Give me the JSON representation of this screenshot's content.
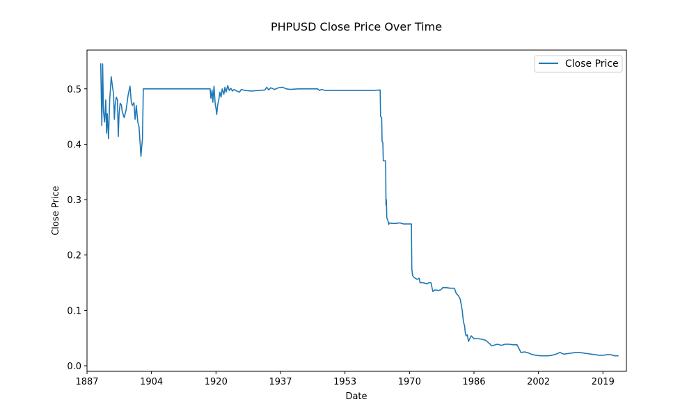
{
  "chart_data": {
    "type": "line",
    "title": "PHPUSD Close Price Over Time",
    "xlabel": "Date",
    "ylabel": "Close Price",
    "grid": false,
    "legend_position": "upper right",
    "series_color": "#1f77b4",
    "xlim": [
      1887,
      2025
    ],
    "ylim": [
      -0.01,
      0.57
    ],
    "x_ticks": [
      {
        "value": 1887,
        "label": "1887"
      },
      {
        "value": 1903.5,
        "label": "1904"
      },
      {
        "value": 1920,
        "label": "1920"
      },
      {
        "value": 1936.5,
        "label": "1937"
      },
      {
        "value": 1953,
        "label": "1953"
      },
      {
        "value": 1969.5,
        "label": "1970"
      },
      {
        "value": 1986,
        "label": "1986"
      },
      {
        "value": 2002.5,
        "label": "2002"
      },
      {
        "value": 2019,
        "label": "2019"
      }
    ],
    "y_ticks": [
      {
        "value": 0.0,
        "label": "0.0"
      },
      {
        "value": 0.1,
        "label": "0.1"
      },
      {
        "value": 0.2,
        "label": "0.2"
      },
      {
        "value": 0.3,
        "label": "0.3"
      },
      {
        "value": 0.4,
        "label": "0.4"
      },
      {
        "value": 0.5,
        "label": "0.5"
      }
    ],
    "series": [
      {
        "name": "Close Price",
        "points": [
          [
            1890.5,
            0.546
          ],
          [
            1890.8,
            0.434
          ],
          [
            1891.0,
            0.545
          ],
          [
            1891.2,
            0.46
          ],
          [
            1891.5,
            0.44
          ],
          [
            1891.8,
            0.48
          ],
          [
            1892.0,
            0.42
          ],
          [
            1892.2,
            0.455
          ],
          [
            1892.5,
            0.41
          ],
          [
            1892.8,
            0.48
          ],
          [
            1893.0,
            0.5
          ],
          [
            1893.2,
            0.522
          ],
          [
            1893.5,
            0.505
          ],
          [
            1893.8,
            0.49
          ],
          [
            1894.0,
            0.445
          ],
          [
            1894.2,
            0.47
          ],
          [
            1894.5,
            0.485
          ],
          [
            1894.8,
            0.48
          ],
          [
            1895.0,
            0.414
          ],
          [
            1895.2,
            0.455
          ],
          [
            1895.5,
            0.474
          ],
          [
            1895.8,
            0.471
          ],
          [
            1896.0,
            0.46
          ],
          [
            1896.5,
            0.448
          ],
          [
            1897.0,
            0.462
          ],
          [
            1897.5,
            0.488
          ],
          [
            1898.0,
            0.505
          ],
          [
            1898.3,
            0.478
          ],
          [
            1898.6,
            0.47
          ],
          [
            1899.0,
            0.475
          ],
          [
            1899.3,
            0.445
          ],
          [
            1899.6,
            0.47
          ],
          [
            1900.0,
            0.44
          ],
          [
            1900.3,
            0.432
          ],
          [
            1900.6,
            0.4
          ],
          [
            1900.8,
            0.378
          ],
          [
            1901.0,
            0.395
          ],
          [
            1901.2,
            0.41
          ],
          [
            1901.4,
            0.5
          ],
          [
            1904.0,
            0.5
          ],
          [
            1912.0,
            0.5
          ],
          [
            1918.5,
            0.5
          ],
          [
            1918.7,
            0.483
          ],
          [
            1919.0,
            0.498
          ],
          [
            1919.2,
            0.476
          ],
          [
            1919.5,
            0.505
          ],
          [
            1919.8,
            0.472
          ],
          [
            1920.0,
            0.465
          ],
          [
            1920.2,
            0.454
          ],
          [
            1920.4,
            0.47
          ],
          [
            1920.7,
            0.48
          ],
          [
            1921.0,
            0.494
          ],
          [
            1921.3,
            0.485
          ],
          [
            1921.6,
            0.5
          ],
          [
            1922.0,
            0.49
          ],
          [
            1922.3,
            0.503
          ],
          [
            1922.6,
            0.494
          ],
          [
            1923.0,
            0.506
          ],
          [
            1923.4,
            0.497
          ],
          [
            1923.8,
            0.501
          ],
          [
            1924.2,
            0.496
          ],
          [
            1924.6,
            0.499
          ],
          [
            1925.0,
            0.497
          ],
          [
            1926.0,
            0.494
          ],
          [
            1926.5,
            0.499
          ],
          [
            1927.5,
            0.497
          ],
          [
            1929.0,
            0.496
          ],
          [
            1931.0,
            0.497
          ],
          [
            1932.5,
            0.498
          ],
          [
            1933.0,
            0.503
          ],
          [
            1933.5,
            0.498
          ],
          [
            1934.0,
            0.502
          ],
          [
            1935.0,
            0.499
          ],
          [
            1936.0,
            0.502
          ],
          [
            1937.0,
            0.503
          ],
          [
            1938.0,
            0.5
          ],
          [
            1939.0,
            0.499
          ],
          [
            1941.0,
            0.5
          ],
          [
            1943.0,
            0.5
          ],
          [
            1946.0,
            0.5
          ],
          [
            1946.5,
            0.497
          ],
          [
            1947.0,
            0.499
          ],
          [
            1948.0,
            0.497
          ],
          [
            1950.0,
            0.497
          ],
          [
            1955.0,
            0.497
          ],
          [
            1960.0,
            0.497
          ],
          [
            1962.0,
            0.498
          ],
          [
            1962.1,
            0.45
          ],
          [
            1962.4,
            0.448
          ],
          [
            1962.5,
            0.405
          ],
          [
            1962.7,
            0.403
          ],
          [
            1962.8,
            0.37
          ],
          [
            1963.4,
            0.37
          ],
          [
            1963.5,
            0.29
          ],
          [
            1963.6,
            0.3
          ],
          [
            1963.7,
            0.268
          ],
          [
            1963.8,
            0.265
          ],
          [
            1964.0,
            0.262
          ],
          [
            1964.2,
            0.255
          ],
          [
            1964.3,
            0.258
          ],
          [
            1965.0,
            0.257
          ],
          [
            1966.0,
            0.257
          ],
          [
            1967.0,
            0.258
          ],
          [
            1968.0,
            0.256
          ],
          [
            1970.0,
            0.256
          ],
          [
            1970.1,
            0.175
          ],
          [
            1970.3,
            0.163
          ],
          [
            1970.6,
            0.16
          ],
          [
            1971.0,
            0.158
          ],
          [
            1971.5,
            0.156
          ],
          [
            1972.0,
            0.158
          ],
          [
            1972.2,
            0.15
          ],
          [
            1973.0,
            0.15
          ],
          [
            1974.0,
            0.148
          ],
          [
            1974.5,
            0.15
          ],
          [
            1975.0,
            0.15
          ],
          [
            1975.3,
            0.14
          ],
          [
            1975.5,
            0.134
          ],
          [
            1976.0,
            0.137
          ],
          [
            1977.0,
            0.136
          ],
          [
            1977.5,
            0.137
          ],
          [
            1978.0,
            0.141
          ],
          [
            1979.0,
            0.141
          ],
          [
            1980.0,
            0.14
          ],
          [
            1981.0,
            0.14
          ],
          [
            1981.5,
            0.13
          ],
          [
            1982.0,
            0.127
          ],
          [
            1982.5,
            0.12
          ],
          [
            1983.0,
            0.1
          ],
          [
            1983.3,
            0.08
          ],
          [
            1983.6,
            0.072
          ],
          [
            1983.8,
            0.059
          ],
          [
            1984.0,
            0.054
          ],
          [
            1984.3,
            0.056
          ],
          [
            1984.6,
            0.044
          ],
          [
            1985.0,
            0.05
          ],
          [
            1985.3,
            0.054
          ],
          [
            1986.0,
            0.049
          ],
          [
            1987.0,
            0.049
          ],
          [
            1988.0,
            0.048
          ],
          [
            1989.0,
            0.046
          ],
          [
            1990.0,
            0.04
          ],
          [
            1990.5,
            0.036
          ],
          [
            1991.0,
            0.037
          ],
          [
            1992.0,
            0.039
          ],
          [
            1993.0,
            0.037
          ],
          [
            1994.0,
            0.039
          ],
          [
            1995.0,
            0.039
          ],
          [
            1996.0,
            0.038
          ],
          [
            1997.0,
            0.038
          ],
          [
            1997.6,
            0.03
          ],
          [
            1998.0,
            0.024
          ],
          [
            1999.0,
            0.025
          ],
          [
            2000.0,
            0.023
          ],
          [
            2001.0,
            0.02
          ],
          [
            2002.0,
            0.019
          ],
          [
            2003.0,
            0.018
          ],
          [
            2004.0,
            0.018
          ],
          [
            2005.0,
            0.018
          ],
          [
            2006.0,
            0.019
          ],
          [
            2007.0,
            0.021
          ],
          [
            2008.0,
            0.024
          ],
          [
            2009.0,
            0.021
          ],
          [
            2010.0,
            0.022
          ],
          [
            2011.0,
            0.023
          ],
          [
            2012.0,
            0.024
          ],
          [
            2013.0,
            0.024
          ],
          [
            2014.0,
            0.023
          ],
          [
            2015.0,
            0.022
          ],
          [
            2016.0,
            0.021
          ],
          [
            2017.0,
            0.02
          ],
          [
            2018.0,
            0.019
          ],
          [
            2019.0,
            0.019
          ],
          [
            2020.0,
            0.02
          ],
          [
            2021.0,
            0.02
          ],
          [
            2022.0,
            0.018
          ],
          [
            2023.0,
            0.018
          ]
        ]
      }
    ]
  }
}
